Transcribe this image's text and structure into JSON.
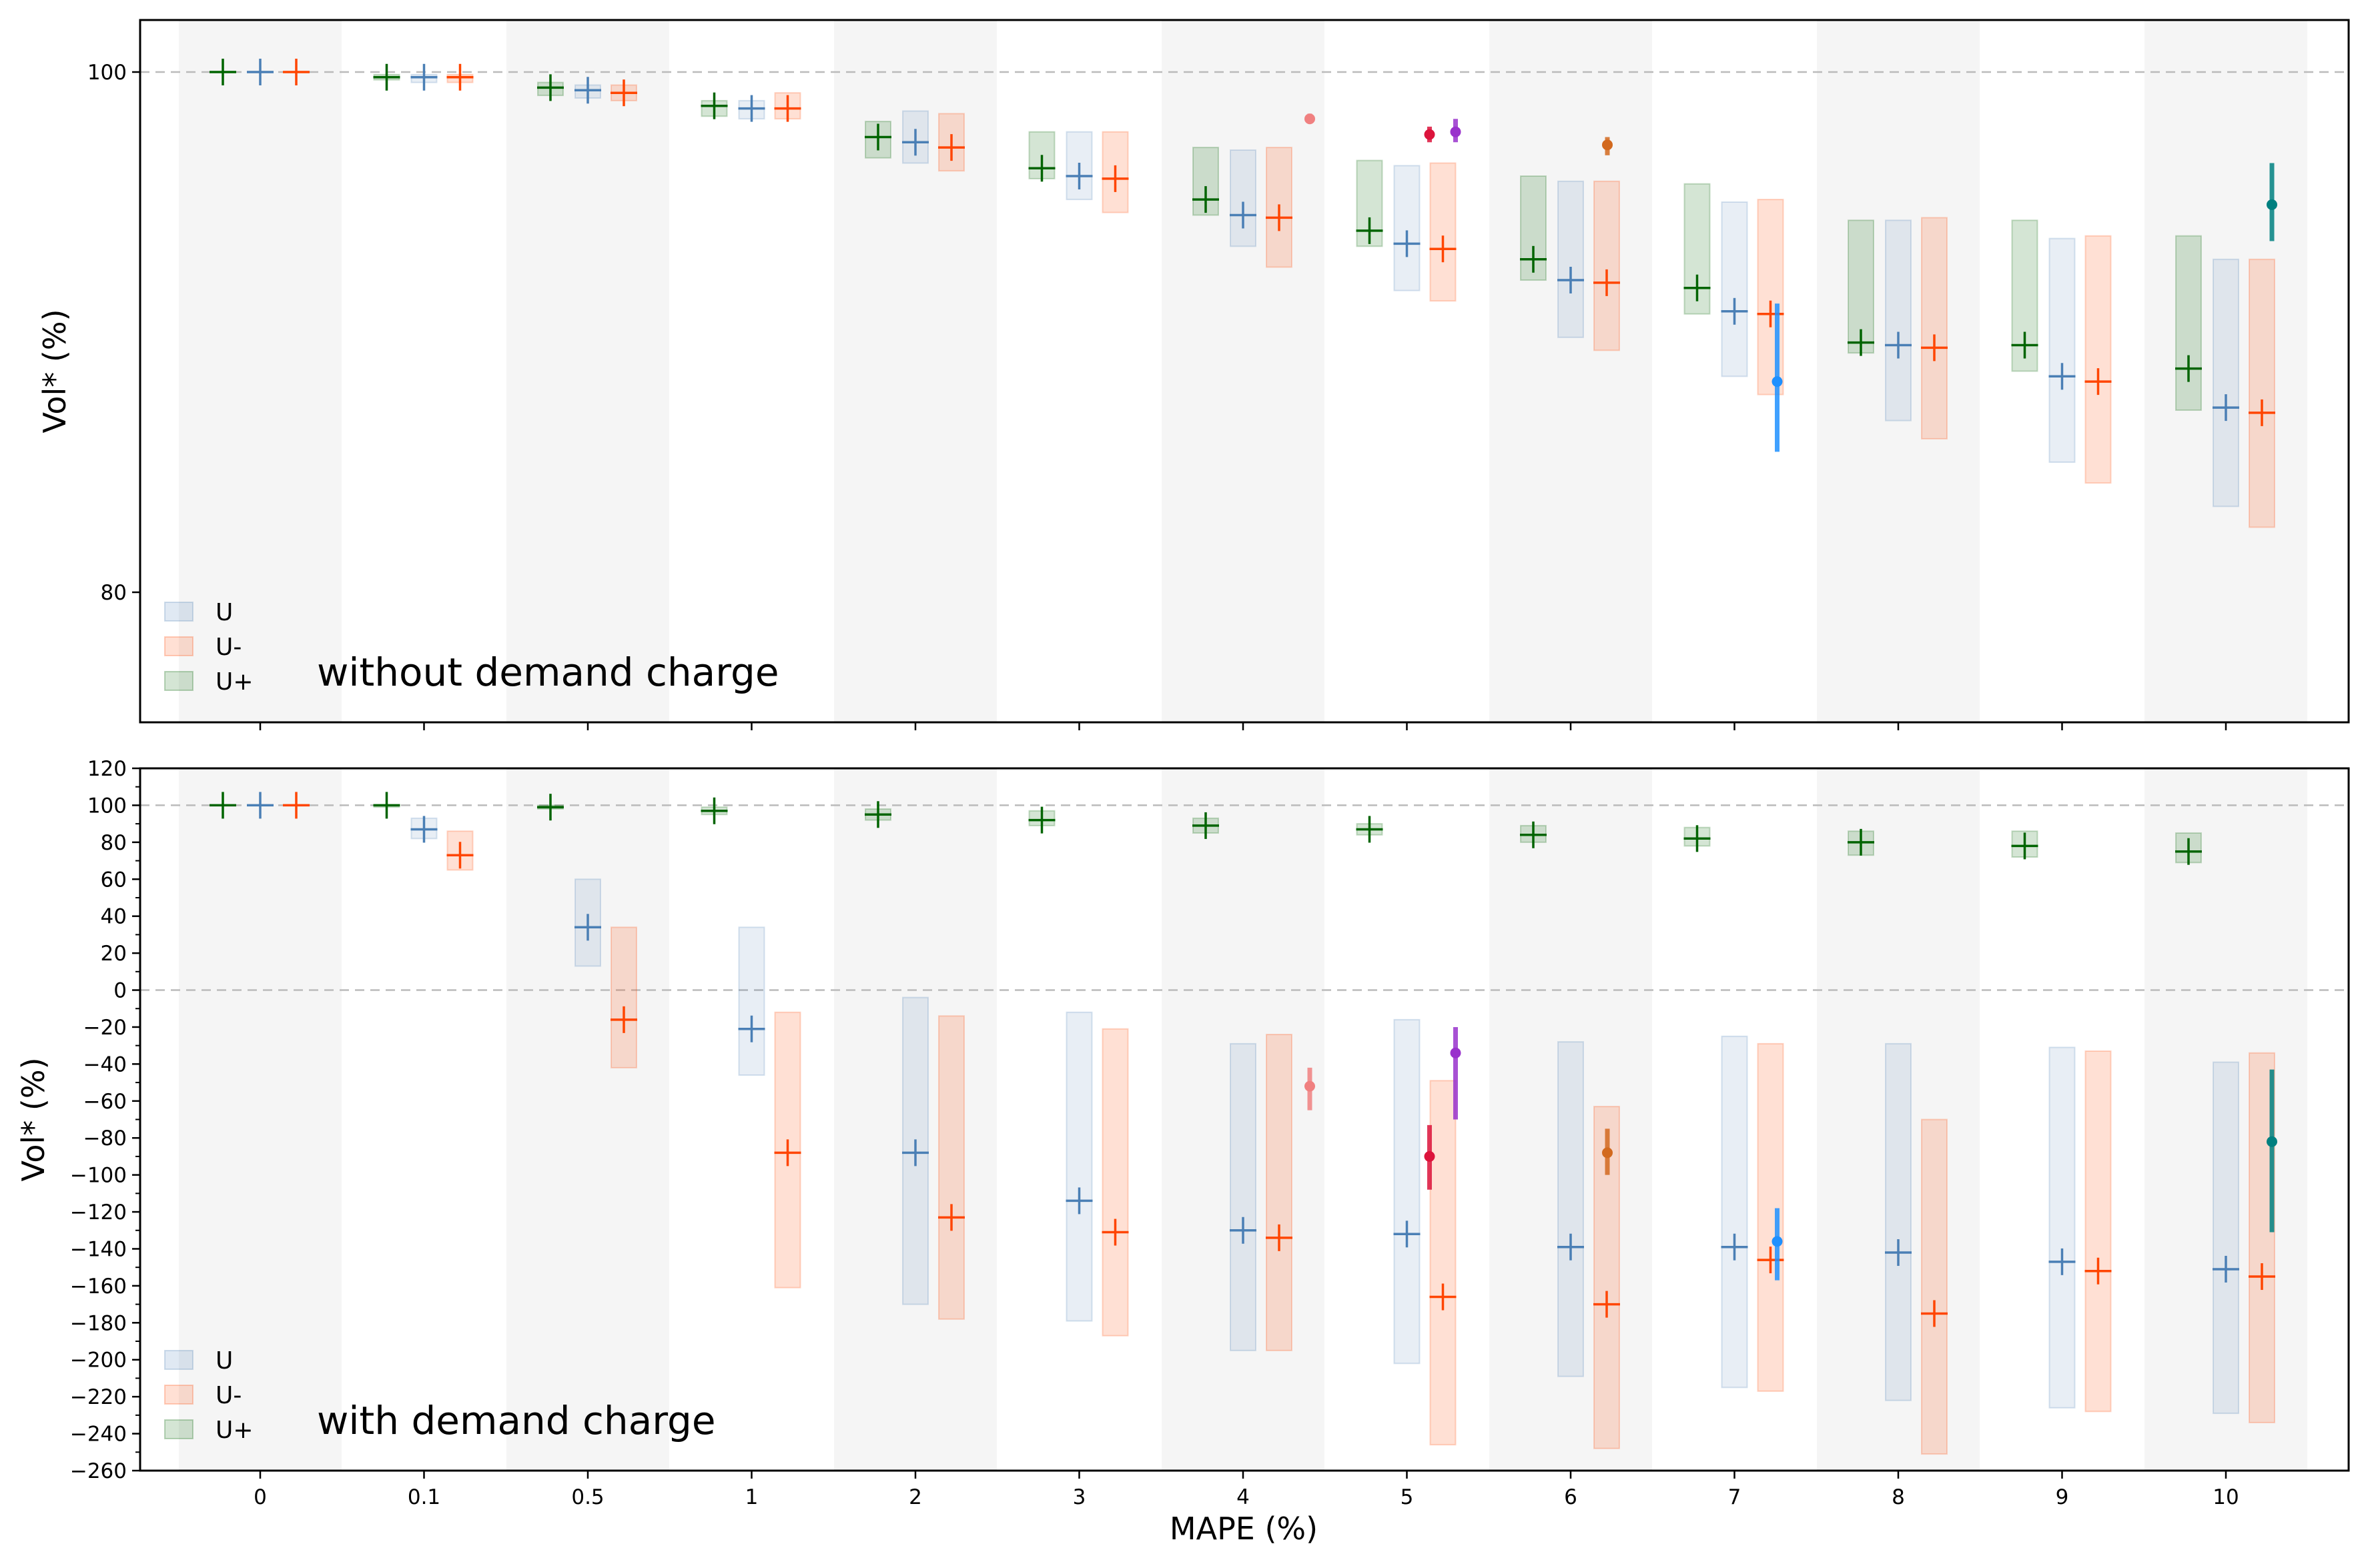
{
  "chart_data": [
    {
      "type": "box-interval",
      "panel": "top",
      "ylabel": "Vol* (%)",
      "xlabel": "",
      "categories": [
        "0",
        "0.1",
        "0.5",
        "1",
        "2",
        "3",
        "4",
        "5",
        "6",
        "7",
        "8",
        "9",
        "10"
      ],
      "ylim": [
        75.0,
        102.0
      ],
      "yticks": [
        "80",
        "100"
      ],
      "reference_line": 100,
      "grid": false,
      "legend": {
        "placement": "lower-left",
        "entries": [
          "U",
          "U-",
          "U+"
        ]
      },
      "annotation": "without demand charge",
      "colors": {
        "U": "#4a7fb5",
        "U-": "#ff4500",
        "U+": "#006400",
        "band": "#f5f5f5"
      },
      "series": [
        {
          "name": "U+",
          "medians": [
            100.0,
            99.8,
            99.4,
            98.7,
            97.5,
            96.3,
            95.1,
            93.9,
            92.8,
            91.7,
            89.6,
            89.5,
            88.6
          ],
          "lows": [
            100.0,
            99.7,
            99.1,
            98.3,
            96.7,
            95.9,
            94.5,
            93.3,
            92.0,
            90.7,
            89.2,
            88.5,
            87.0
          ],
          "highs": [
            100.0,
            99.9,
            99.6,
            98.9,
            98.1,
            97.7,
            97.1,
            96.6,
            96.0,
            95.7,
            94.3,
            94.3,
            93.7
          ]
        },
        {
          "name": "U",
          "medians": [
            100.0,
            99.8,
            99.3,
            98.6,
            97.3,
            96.0,
            94.5,
            93.4,
            92.0,
            90.8,
            89.5,
            88.3,
            87.1
          ],
          "lows": [
            100.0,
            99.6,
            99.0,
            98.2,
            96.5,
            95.1,
            93.3,
            91.6,
            89.8,
            88.3,
            86.6,
            85.0,
            83.3
          ],
          "highs": [
            100.0,
            99.9,
            99.5,
            98.9,
            98.5,
            97.7,
            97.0,
            96.4,
            95.8,
            95.0,
            94.3,
            93.6,
            92.8
          ]
        },
        {
          "name": "U-",
          "medians": [
            100.0,
            99.8,
            99.2,
            98.6,
            97.1,
            95.9,
            94.4,
            93.2,
            91.9,
            90.7,
            89.4,
            88.1,
            86.9
          ],
          "lows": [
            100.0,
            99.6,
            98.9,
            98.2,
            96.2,
            94.6,
            92.5,
            91.2,
            89.3,
            87.6,
            85.9,
            84.2,
            82.5
          ],
          "highs": [
            100.0,
            99.9,
            99.5,
            99.2,
            98.4,
            97.7,
            97.1,
            96.5,
            95.8,
            95.1,
            94.4,
            93.7,
            92.8
          ]
        }
      ],
      "markers": [
        {
          "category": "4",
          "value": 98.2,
          "low": 98.1,
          "high": 98.4,
          "color": "#f08080"
        },
        {
          "category": "5",
          "value": 97.6,
          "low": 97.3,
          "high": 97.9,
          "color": "#dc143c"
        },
        {
          "category": "5",
          "value": 97.7,
          "low": 97.3,
          "high": 98.2,
          "color": "#9932cc"
        },
        {
          "category": "6",
          "value": 97.2,
          "low": 96.8,
          "high": 97.5,
          "color": "#d2691e"
        },
        {
          "category": "7",
          "value": 88.1,
          "low": 85.4,
          "high": 91.1,
          "color": "#1e90ff"
        },
        {
          "category": "10",
          "value": 94.9,
          "low": 93.5,
          "high": 96.5,
          "color": "#008080"
        }
      ]
    },
    {
      "type": "box-interval",
      "panel": "bottom",
      "ylabel": "Vol* (%)",
      "xlabel": "MAPE (%)",
      "categories": [
        "0",
        "0.1",
        "0.5",
        "1",
        "2",
        "3",
        "4",
        "5",
        "6",
        "7",
        "8",
        "9",
        "10"
      ],
      "ylim": [
        -260,
        120
      ],
      "yticks": [
        "120",
        "100",
        "80",
        "60",
        "40",
        "20",
        "0",
        "−20",
        "−40",
        "−60",
        "−80",
        "−100",
        "−120",
        "−140",
        "−160",
        "−180",
        "−200",
        "−220",
        "−240",
        "−260"
      ],
      "reference_lines": [
        100,
        0
      ],
      "grid": false,
      "legend": {
        "placement": "lower-left",
        "entries": [
          "U",
          "U-",
          "U+"
        ]
      },
      "annotation": "with demand charge",
      "colors": {
        "U": "#4a7fb5",
        "U-": "#ff4500",
        "U+": "#006400",
        "band": "#f5f5f5"
      },
      "series": [
        {
          "name": "U+",
          "medians": [
            100,
            100,
            99,
            97,
            95,
            92,
            89,
            87,
            84,
            82,
            80,
            78,
            75
          ],
          "lows": [
            100,
            99,
            98,
            95,
            92,
            89,
            85,
            84,
            80,
            78,
            73,
            72,
            69
          ],
          "highs": [
            100,
            100,
            100,
            99,
            98,
            97,
            93,
            90,
            89,
            88,
            86,
            86,
            85
          ]
        },
        {
          "name": "U",
          "medians": [
            100,
            87,
            34,
            -21,
            -88,
            -114,
            -130,
            -132,
            -139,
            -139,
            -142,
            -147,
            -151
          ],
          "lows": [
            100,
            82,
            13,
            -46,
            -170,
            -179,
            -195,
            -202,
            -209,
            -215,
            -222,
            -226,
            -229
          ],
          "highs": [
            100,
            93,
            60,
            34,
            -4,
            -12,
            -29,
            -16,
            -28,
            -25,
            -29,
            -31,
            -39
          ]
        },
        {
          "name": "U-",
          "medians": [
            100,
            73,
            -16,
            -88,
            -123,
            -131,
            -134,
            -166,
            -170,
            -146,
            -175,
            -152,
            -155
          ],
          "lows": [
            100,
            65,
            -42,
            -161,
            -178,
            -187,
            -195,
            -246,
            -248,
            -217,
            -251,
            -228,
            -234
          ],
          "highs": [
            100,
            86,
            34,
            -12,
            -14,
            -21,
            -24,
            -49,
            -63,
            -29,
            -70,
            -33,
            -34
          ]
        }
      ],
      "markers": [
        {
          "category": "4",
          "value": -52,
          "low": -65,
          "high": -42,
          "color": "#f08080"
        },
        {
          "category": "5",
          "value": -90,
          "low": -108,
          "high": -73,
          "color": "#dc143c"
        },
        {
          "category": "5",
          "value": -34,
          "low": -70,
          "high": -20,
          "color": "#9932cc"
        },
        {
          "category": "6",
          "value": -88,
          "low": -100,
          "high": -75,
          "color": "#d2691e"
        },
        {
          "category": "7",
          "value": -136,
          "low": -157,
          "high": -118,
          "color": "#1e90ff"
        },
        {
          "category": "10",
          "value": -82,
          "low": -131,
          "high": -43,
          "color": "#008080"
        }
      ]
    }
  ]
}
